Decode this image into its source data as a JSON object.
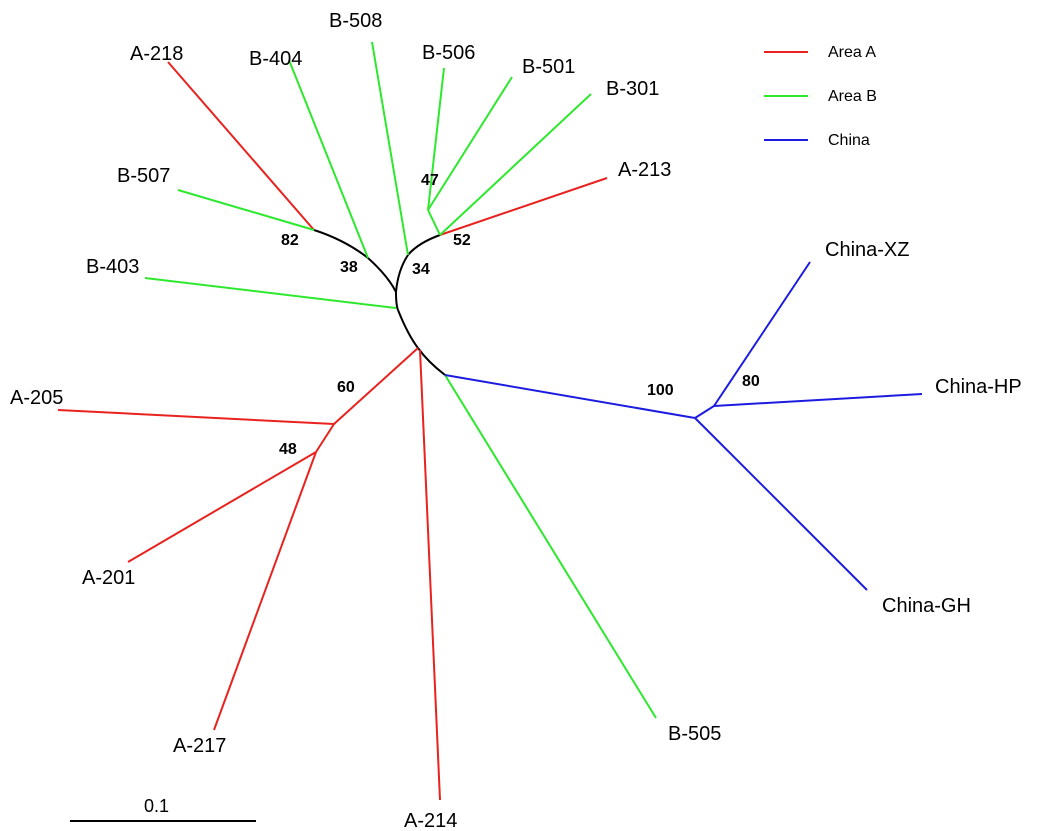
{
  "colors": {
    "area_a": "#e8221e",
    "area_b": "#2ee82e",
    "china": "#1c1ce0",
    "internal": "#000000"
  },
  "legend": {
    "items": [
      {
        "label": "Area A",
        "color": "#e8221e"
      },
      {
        "label": "Area B",
        "color": "#2ee82e"
      },
      {
        "label": "China",
        "color": "#1c1ce0"
      }
    ]
  },
  "leaves": {
    "a218": "A-218",
    "b404": "B-404",
    "b508": "B-508",
    "b506": "B-506",
    "b501": "B-501",
    "b301": "B-301",
    "a213": "A-213",
    "b507": "B-507",
    "b403": "B-403",
    "china_xz": "China-XZ",
    "china_hp": "China-HP",
    "china_gh": "China-GH",
    "a205": "A-205",
    "a201": "A-201",
    "a217": "A-217",
    "a214": "A-214",
    "b505": "B-505"
  },
  "bootstrap": {
    "n82": "82",
    "n38": "38",
    "n47": "47",
    "n52": "52",
    "n34": "34",
    "n60": "60",
    "n48": "48",
    "n100": "100",
    "n80": "80"
  },
  "scale_bar": {
    "label": "0.1"
  }
}
